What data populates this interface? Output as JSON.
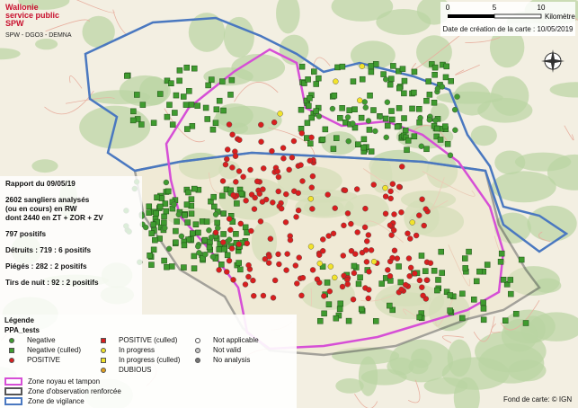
{
  "header": {
    "logo_line1": "Wallonie",
    "logo_line2": "service public",
    "logo_line3": "SPW",
    "department": "SPW - DGO3 - DEMNA"
  },
  "scale_bar": {
    "ticks": [
      0,
      5,
      10
    ],
    "unit": "Kilomètres"
  },
  "creation_date": "Date de création de la carte : 10/05/2019",
  "report": {
    "title": "Rapport du 09/05/19",
    "analysed": [
      "2602 sangliers analysés",
      "(ou en cours) en RW",
      "dont 2440 en ZT + ZOR + ZV"
    ],
    "positives": "797 positifs",
    "shot": "Détruits : 719 : 6 positifs",
    "trapped": "Piégés : 282 : 2 positifs",
    "night": "Tirs de nuit : 92 : 2 positifs"
  },
  "legend": {
    "title": "Légende",
    "group": "PPA_tests",
    "items": [
      {
        "label": "Negative",
        "color": "#3f9b2f",
        "shape": "circle"
      },
      {
        "label": "Negative (culled)",
        "color": "#3f9b2f",
        "shape": "square"
      },
      {
        "label": "POSITIVE",
        "color": "#d91e1e",
        "shape": "circle"
      },
      {
        "label": "POSITIVE (culled)",
        "color": "#d91e1e",
        "shape": "square"
      },
      {
        "label": "In progress",
        "color": "#f2e32b",
        "shape": "circle"
      },
      {
        "label": "In progress (culled)",
        "color": "#f2e32b",
        "shape": "square"
      },
      {
        "label": "DUBIOUS",
        "color": "#e0a020",
        "shape": "circle"
      },
      {
        "label": "Not applicable",
        "color": "#ffffff",
        "shape": "circle"
      },
      {
        "label": "Not valid",
        "color": "#c8c8c8",
        "shape": "circle"
      },
      {
        "label": "No analysis",
        "color": "#777777",
        "shape": "circle"
      }
    ],
    "zones": [
      {
        "label": "Zone noyau et tampon",
        "color": "#d64fd6"
      },
      {
        "label": "Zone d'observation renforcée",
        "color": "#555555"
      },
      {
        "label": "Zone de vigilance",
        "color": "#4a78c0"
      }
    ]
  },
  "credit": "Fond de carte: © IGN"
}
